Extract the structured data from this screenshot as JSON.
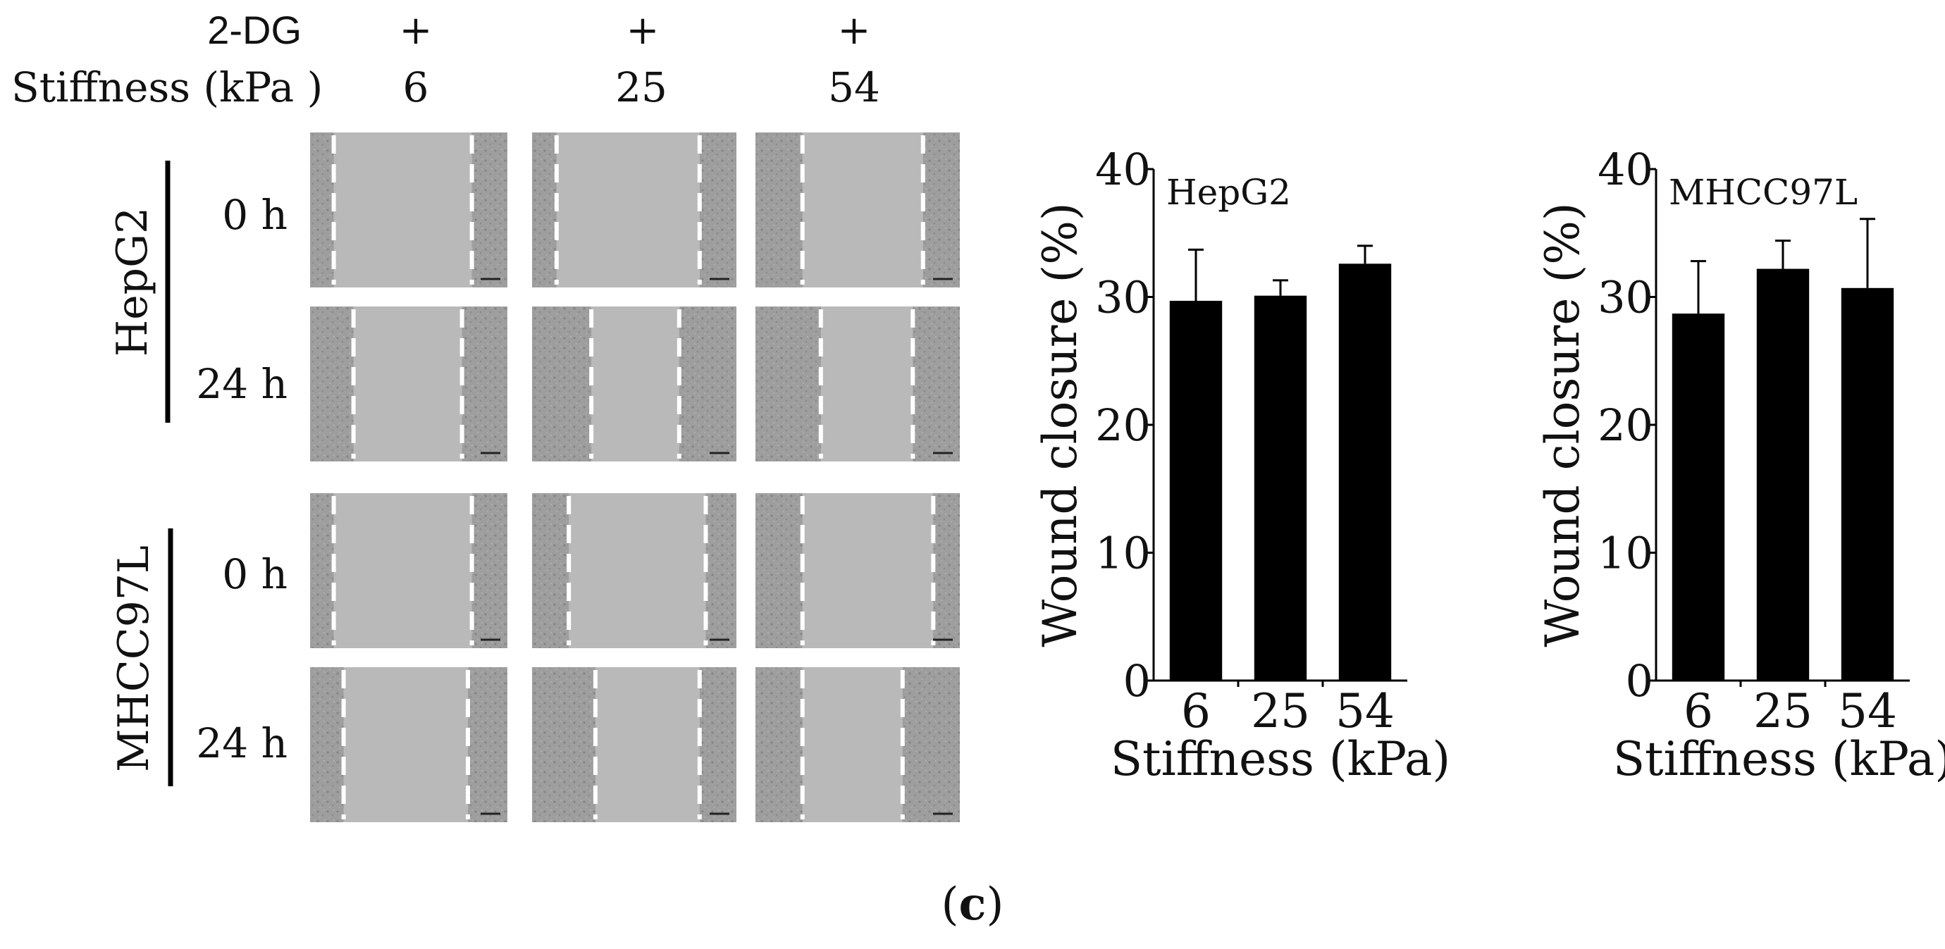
{
  "figure": {
    "panel_label_open": "(",
    "panel_label_letter": "c",
    "panel_label_close": ")"
  },
  "conditions": {
    "treatment_label": "2-DG",
    "stiffness_label": "Stiffness (kPa )",
    "columns": [
      {
        "treatment": "+",
        "stiffness": "6"
      },
      {
        "treatment": "+",
        "stiffness": "25"
      },
      {
        "treatment": "+",
        "stiffness": "54"
      }
    ]
  },
  "micrographs": {
    "groups": [
      {
        "cell_line": "HepG2",
        "rows": [
          {
            "time": "0 h"
          },
          {
            "time": "24 h"
          }
        ]
      },
      {
        "cell_line": "MHCC97L",
        "rows": [
          {
            "time": "0 h"
          },
          {
            "time": "24 h"
          }
        ]
      }
    ]
  },
  "colors": {
    "bar": "#000000",
    "image_background": "#a8a8a8",
    "image_gap": "#b9b9b9",
    "scratch_line": "#ffffff"
  },
  "chart_data": [
    {
      "type": "bar",
      "title": "HepG2",
      "categories": [
        "6",
        "25",
        "54"
      ],
      "values": [
        29.7,
        30.1,
        32.6
      ],
      "errors": [
        4.0,
        1.2,
        1.4
      ],
      "xlabel": "Stiffness (kPa)",
      "ylabel": "Wound closure (%)",
      "ylim": [
        0,
        40
      ],
      "yticks": [
        "0",
        "10",
        "20",
        "30",
        "40"
      ],
      "grid": false
    },
    {
      "type": "bar",
      "title": "MHCC97L",
      "categories": [
        "6",
        "25",
        "54"
      ],
      "values": [
        28.7,
        32.2,
        30.7
      ],
      "errors": [
        4.1,
        2.2,
        5.4
      ],
      "xlabel": "Stiffness (kPa)",
      "ylabel": "Wound closure (%)",
      "ylim": [
        0,
        40
      ],
      "yticks": [
        "0",
        "10",
        "20",
        "30",
        "40"
      ],
      "grid": false
    }
  ]
}
